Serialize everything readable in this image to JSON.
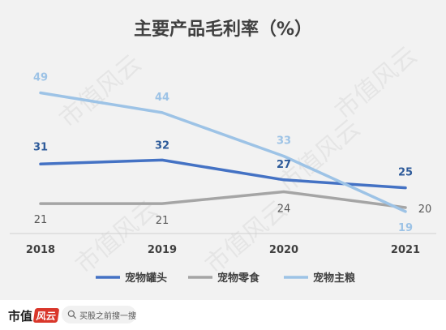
{
  "chart_data": {
    "type": "line",
    "title": "主要产品毛利率（%）",
    "categories": [
      "2018",
      "2019",
      "2020",
      "2021"
    ],
    "ylim": [
      0,
      60
    ],
    "grid": false,
    "legend_position": "bottom",
    "series": [
      {
        "name": "宠物罐头",
        "color": "#4472c4",
        "values": [
          31,
          32,
          27,
          25
        ],
        "labels": [
          "31",
          "32",
          "27",
          "25"
        ],
        "label_color": "#2e5b9a",
        "label_bold": true
      },
      {
        "name": "宠物零食",
        "color": "#a5a5a5",
        "values": [
          21,
          21,
          24,
          20
        ],
        "labels": [
          "21",
          "21",
          "24",
          "20"
        ],
        "label_color": "#595959",
        "label_bold": false
      },
      {
        "name": "宠物主粮",
        "color": "#9dc3e6",
        "values": [
          49,
          44,
          33,
          19
        ],
        "labels": [
          "49",
          "44",
          "33",
          "19"
        ],
        "label_color": "#9dc3e6",
        "label_bold": true
      }
    ]
  },
  "watermark": "市值风云",
  "footer": {
    "brand": "市值",
    "brand_seal": "风云",
    "search_placeholder": "买股之前搜一搜"
  }
}
